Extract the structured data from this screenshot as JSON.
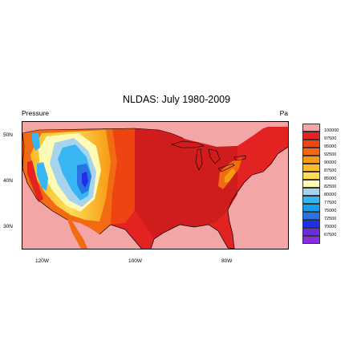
{
  "title": "NLDAS: July 1980-2009",
  "left_label": "Pressure",
  "units": "Pa",
  "map": {
    "type": "filled-contour",
    "region": "contiguous United States",
    "projection": "cylindrical equidistant",
    "lon_labels": [
      "120W",
      "100W",
      "80W"
    ],
    "lat_labels": [
      "50N",
      "40N",
      "30N"
    ]
  },
  "colorbar": {
    "levels": [
      "100000",
      "97500",
      "95000",
      "92500",
      "90000",
      "87500",
      "85000",
      "82500",
      "80000",
      "77500",
      "75000",
      "72500",
      "70000",
      "67500"
    ],
    "colors": [
      "#f4a6a6",
      "#e32222",
      "#ee4411",
      "#f26b12",
      "#f79a14",
      "#fbbb2a",
      "#fcdd55",
      "#fffab6",
      "#a7d4ec",
      "#36b6f2",
      "#159ef0",
      "#2a73e3",
      "#1f2ee8",
      "#6a2fd6",
      "#8a2be2"
    ]
  }
}
